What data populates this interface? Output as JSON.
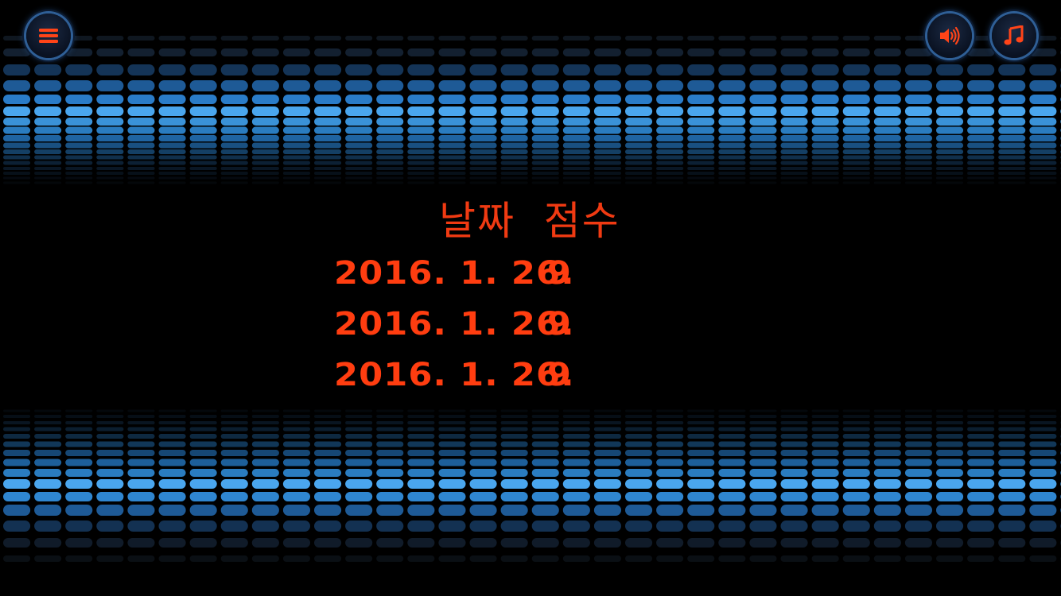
{
  "header": {
    "menu_icon": "hamburger-menu-icon",
    "sound_icon": "speaker-volume-icon",
    "music_icon": "music-note-icon"
  },
  "colors": {
    "text_accent": "#f03a12",
    "equalizer_blue": "#3a9be8",
    "background": "#000000"
  },
  "scoreboard": {
    "heading": "날짜  점수",
    "entries": [
      {
        "date": "2016. 1. 26.",
        "score": "9"
      },
      {
        "date": "2016. 1. 26.",
        "score": "9"
      },
      {
        "date": "2016. 1. 26.",
        "score": "9"
      }
    ]
  }
}
